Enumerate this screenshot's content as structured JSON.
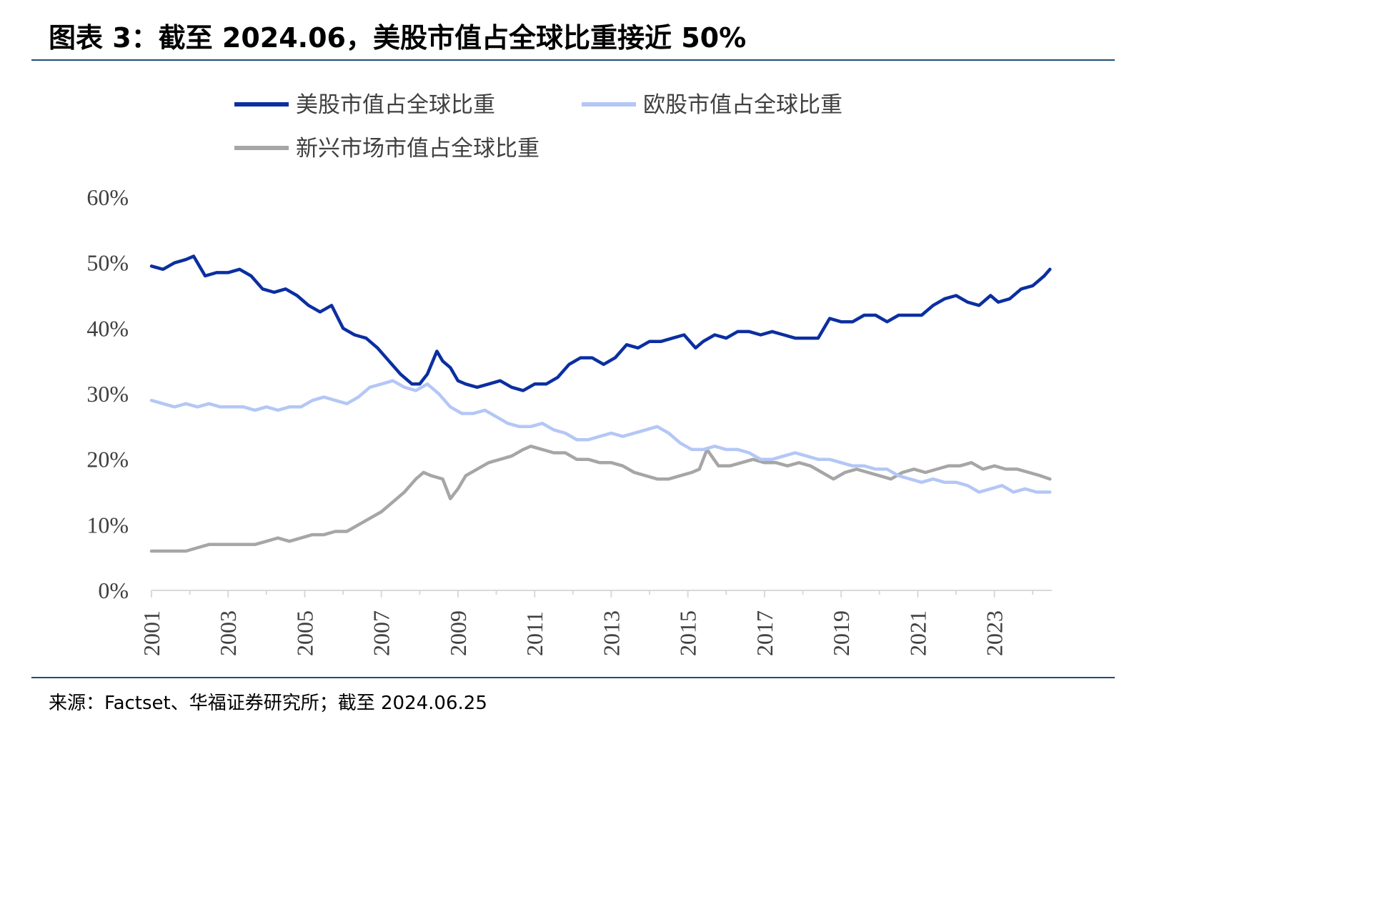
{
  "header": {
    "title": "图表 3：截至 2024.06，美股市值占全球比重接近 50%"
  },
  "footer": {
    "source": "来源：Factset、华福证券研究所；截至 2024.06.25"
  },
  "chart_data": {
    "type": "line",
    "title": "",
    "xlabel": "",
    "ylabel": "",
    "x_ticks": [
      "2001",
      "2003",
      "2005",
      "2007",
      "2009",
      "2011",
      "2013",
      "2015",
      "2017",
      "2019",
      "2021",
      "2023"
    ],
    "y_ticks": [
      "0%",
      "10%",
      "20%",
      "30%",
      "40%",
      "50%",
      "60%"
    ],
    "xlim": [
      2001.0,
      2024.5
    ],
    "ylim": [
      0,
      60
    ],
    "grid": false,
    "legend": "top",
    "series": [
      {
        "name": "美股市值占全球比重",
        "color": "#0b2fa0",
        "x": [
          2001.0,
          2001.3,
          2001.6,
          2001.9,
          2002.1,
          2002.4,
          2002.7,
          2003.0,
          2003.3,
          2003.6,
          2003.9,
          2004.2,
          2004.5,
          2004.8,
          2005.1,
          2005.4,
          2005.7,
          2006.0,
          2006.3,
          2006.6,
          2006.9,
          2007.2,
          2007.5,
          2007.8,
          2008.0,
          2008.2,
          2008.45,
          2008.6,
          2008.8,
          2009.0,
          2009.2,
          2009.5,
          2009.8,
          2010.1,
          2010.4,
          2010.7,
          2011.0,
          2011.3,
          2011.6,
          2011.9,
          2012.2,
          2012.5,
          2012.8,
          2013.1,
          2013.4,
          2013.7,
          2014.0,
          2014.3,
          2014.6,
          2014.9,
          2015.2,
          2015.4,
          2015.7,
          2016.0,
          2016.3,
          2016.6,
          2016.9,
          2017.2,
          2017.5,
          2017.8,
          2018.1,
          2018.4,
          2018.7,
          2019.0,
          2019.3,
          2019.6,
          2019.9,
          2020.2,
          2020.5,
          2020.8,
          2021.1,
          2021.4,
          2021.7,
          2022.0,
          2022.3,
          2022.6,
          2022.9,
          2023.1,
          2023.4,
          2023.7,
          2024.0,
          2024.3,
          2024.45
        ],
        "values": [
          49.5,
          49.0,
          50.0,
          50.5,
          51.0,
          48.0,
          48.5,
          48.5,
          49.0,
          48.0,
          46.0,
          45.5,
          46.0,
          45.0,
          43.5,
          42.5,
          43.5,
          40.0,
          39.0,
          38.5,
          37.0,
          35.0,
          33.0,
          31.5,
          31.5,
          33.0,
          36.5,
          35.0,
          34.0,
          32.0,
          31.5,
          31.0,
          31.5,
          32.0,
          31.0,
          30.5,
          31.5,
          31.5,
          32.5,
          34.5,
          35.5,
          35.5,
          34.5,
          35.5,
          37.5,
          37.0,
          38.0,
          38.0,
          38.5,
          39.0,
          37.0,
          38.0,
          39.0,
          38.5,
          39.5,
          39.5,
          39.0,
          39.5,
          39.0,
          38.5,
          38.5,
          38.5,
          41.5,
          41.0,
          41.0,
          42.0,
          42.0,
          41.0,
          42.0,
          42.0,
          42.0,
          43.5,
          44.5,
          45.0,
          44.0,
          43.5,
          45.0,
          44.0,
          44.5,
          46.0,
          46.5,
          48.0,
          49.0
        ]
      },
      {
        "name": "欧股市值占全球比重",
        "color": "#b4c7f5",
        "x": [
          2001.0,
          2001.3,
          2001.6,
          2001.9,
          2002.2,
          2002.5,
          2002.8,
          2003.1,
          2003.4,
          2003.7,
          2004.0,
          2004.3,
          2004.6,
          2004.9,
          2005.2,
          2005.5,
          2005.8,
          2006.1,
          2006.4,
          2006.7,
          2007.0,
          2007.3,
          2007.6,
          2007.9,
          2008.2,
          2008.5,
          2008.8,
          2009.1,
          2009.4,
          2009.7,
          2010.0,
          2010.3,
          2010.6,
          2010.9,
          2011.2,
          2011.5,
          2011.8,
          2012.1,
          2012.4,
          2012.7,
          2013.0,
          2013.3,
          2013.6,
          2013.9,
          2014.2,
          2014.5,
          2014.8,
          2015.1,
          2015.4,
          2015.7,
          2016.0,
          2016.3,
          2016.6,
          2016.9,
          2017.2,
          2017.5,
          2017.8,
          2018.1,
          2018.4,
          2018.7,
          2019.0,
          2019.3,
          2019.6,
          2019.9,
          2020.2,
          2020.5,
          2020.8,
          2021.1,
          2021.4,
          2021.7,
          2022.0,
          2022.3,
          2022.6,
          2022.9,
          2023.2,
          2023.5,
          2023.8,
          2024.1,
          2024.45
        ],
        "values": [
          29.0,
          28.5,
          28.0,
          28.5,
          28.0,
          28.5,
          28.0,
          28.0,
          28.0,
          27.5,
          28.0,
          27.5,
          28.0,
          28.0,
          29.0,
          29.5,
          29.0,
          28.5,
          29.5,
          31.0,
          31.5,
          32.0,
          31.0,
          30.5,
          31.5,
          30.0,
          28.0,
          27.0,
          27.0,
          27.5,
          26.5,
          25.5,
          25.0,
          25.0,
          25.5,
          24.5,
          24.0,
          23.0,
          23.0,
          23.5,
          24.0,
          23.5,
          24.0,
          24.5,
          25.0,
          24.0,
          22.5,
          21.5,
          21.5,
          22.0,
          21.5,
          21.5,
          21.0,
          20.0,
          20.0,
          20.5,
          21.0,
          20.5,
          20.0,
          20.0,
          19.5,
          19.0,
          19.0,
          18.5,
          18.5,
          17.5,
          17.0,
          16.5,
          17.0,
          16.5,
          16.5,
          16.0,
          15.0,
          15.5,
          16.0,
          15.0,
          15.5,
          15.0,
          15.0
        ]
      },
      {
        "name": "新兴市场市值占全球比重",
        "color": "#a6a6a6",
        "x": [
          2001.0,
          2001.3,
          2001.6,
          2001.9,
          2002.2,
          2002.5,
          2002.8,
          2003.1,
          2003.4,
          2003.7,
          2004.0,
          2004.3,
          2004.6,
          2004.9,
          2005.2,
          2005.5,
          2005.8,
          2006.1,
          2006.4,
          2006.7,
          2007.0,
          2007.3,
          2007.6,
          2007.9,
          2008.1,
          2008.3,
          2008.6,
          2008.8,
          2009.0,
          2009.2,
          2009.5,
          2009.8,
          2010.1,
          2010.4,
          2010.7,
          2010.9,
          2011.2,
          2011.5,
          2011.8,
          2012.1,
          2012.4,
          2012.7,
          2013.0,
          2013.3,
          2013.6,
          2013.9,
          2014.2,
          2014.5,
          2014.8,
          2015.1,
          2015.3,
          2015.5,
          2015.8,
          2016.1,
          2016.4,
          2016.7,
          2017.0,
          2017.3,
          2017.6,
          2017.9,
          2018.2,
          2018.5,
          2018.8,
          2019.1,
          2019.4,
          2019.7,
          2020.0,
          2020.3,
          2020.6,
          2020.9,
          2021.2,
          2021.5,
          2021.8,
          2022.1,
          2022.4,
          2022.7,
          2023.0,
          2023.3,
          2023.6,
          2023.9,
          2024.2,
          2024.45
        ],
        "values": [
          6.0,
          6.0,
          6.0,
          6.0,
          6.5,
          7.0,
          7.0,
          7.0,
          7.0,
          7.0,
          7.5,
          8.0,
          7.5,
          8.0,
          8.5,
          8.5,
          9.0,
          9.0,
          10.0,
          11.0,
          12.0,
          13.5,
          15.0,
          17.0,
          18.0,
          17.5,
          17.0,
          14.0,
          15.5,
          17.5,
          18.5,
          19.5,
          20.0,
          20.5,
          21.5,
          22.0,
          21.5,
          21.0,
          21.0,
          20.0,
          20.0,
          19.5,
          19.5,
          19.0,
          18.0,
          17.5,
          17.0,
          17.0,
          17.5,
          18.0,
          18.5,
          21.5,
          19.0,
          19.0,
          19.5,
          20.0,
          19.5,
          19.5,
          19.0,
          19.5,
          19.0,
          18.0,
          17.0,
          18.0,
          18.5,
          18.0,
          17.5,
          17.0,
          18.0,
          18.5,
          18.0,
          18.5,
          19.0,
          19.0,
          19.5,
          18.5,
          19.0,
          18.5,
          18.5,
          18.0,
          17.5,
          17.0
        ]
      }
    ]
  }
}
